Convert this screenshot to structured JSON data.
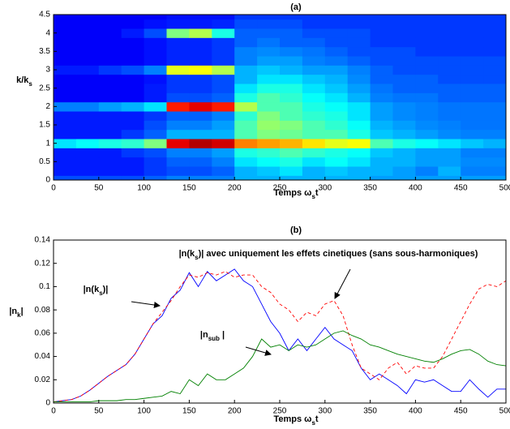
{
  "chart_data": [
    {
      "type": "heatmap",
      "title": "(a)",
      "xlabel_parts": [
        "Temps ω",
        "s",
        "t"
      ],
      "ylabel_parts": [
        "k/k",
        "s"
      ],
      "xlim": [
        0,
        500
      ],
      "xticks": [
        0,
        50,
        100,
        150,
        200,
        250,
        300,
        350,
        400,
        450,
        500
      ],
      "ylim": [
        0,
        4.5
      ],
      "yticks": [
        0,
        0.5,
        1,
        1.5,
        2,
        2.5,
        3,
        3.5,
        4,
        4.5
      ],
      "colormap": "jet",
      "zlim": [
        0,
        100
      ],
      "x": [
        12.5,
        37.5,
        62.5,
        87.5,
        112.5,
        137.5,
        162.5,
        187.5,
        212.5,
        237.5,
        262.5,
        287.5,
        312.5,
        337.5,
        362.5,
        387.5,
        412.5,
        437.5,
        462.5,
        487.5
      ],
      "y": [
        0,
        0.25,
        0.5,
        0.75,
        1,
        1.25,
        1.5,
        1.75,
        2,
        2.25,
        2.5,
        2.75,
        3,
        3.25,
        3.5,
        3.75,
        4,
        4.25,
        4.5
      ],
      "z": [
        [
          20,
          20,
          20,
          20,
          22,
          25,
          25,
          25,
          30,
          30,
          30,
          30,
          30,
          30,
          28,
          28,
          28,
          28,
          28,
          28
        ],
        [
          15,
          15,
          15,
          15,
          18,
          20,
          20,
          22,
          30,
          32,
          35,
          30,
          32,
          30,
          30,
          28,
          25,
          30,
          25,
          25
        ],
        [
          15,
          15,
          15,
          15,
          18,
          22,
          22,
          25,
          35,
          38,
          40,
          35,
          38,
          35,
          30,
          30,
          28,
          28,
          26,
          26
        ],
        [
          15,
          15,
          15,
          18,
          20,
          25,
          25,
          28,
          40,
          42,
          45,
          42,
          40,
          38,
          32,
          30,
          28,
          28,
          25,
          25
        ],
        [
          35,
          38,
          40,
          42,
          50,
          90,
          95,
          92,
          75,
          72,
          70,
          65,
          60,
          62,
          45,
          40,
          38,
          35,
          32,
          30
        ],
        [
          15,
          15,
          15,
          18,
          22,
          30,
          30,
          30,
          45,
          50,
          48,
          45,
          45,
          40,
          32,
          30,
          28,
          26,
          25,
          25
        ],
        [
          15,
          15,
          15,
          15,
          20,
          25,
          25,
          28,
          45,
          52,
          50,
          45,
          42,
          38,
          30,
          28,
          26,
          25,
          24,
          24
        ],
        [
          15,
          15,
          15,
          15,
          18,
          22,
          22,
          25,
          42,
          50,
          45,
          42,
          40,
          35,
          28,
          26,
          25,
          24,
          24,
          24
        ],
        [
          25,
          25,
          28,
          30,
          35,
          85,
          90,
          85,
          55,
          45,
          45,
          40,
          38,
          35,
          28,
          26,
          25,
          24,
          24,
          24
        ],
        [
          12,
          12,
          12,
          12,
          15,
          20,
          20,
          22,
          40,
          45,
          42,
          38,
          35,
          30,
          25,
          24,
          24,
          22,
          22,
          22
        ],
        [
          12,
          12,
          12,
          12,
          15,
          18,
          18,
          20,
          35,
          40,
          40,
          35,
          32,
          28,
          24,
          22,
          22,
          22,
          22,
          22
        ],
        [
          12,
          12,
          12,
          12,
          14,
          18,
          18,
          20,
          30,
          35,
          35,
          32,
          30,
          26,
          22,
          22,
          22,
          20,
          20,
          20
        ],
        [
          15,
          15,
          18,
          20,
          25,
          60,
          62,
          55,
          30,
          32,
          30,
          28,
          28,
          25,
          22,
          20,
          20,
          20,
          20,
          20
        ],
        [
          12,
          12,
          12,
          12,
          14,
          16,
          16,
          18,
          25,
          28,
          28,
          25,
          24,
          22,
          20,
          20,
          20,
          20,
          20,
          20
        ],
        [
          12,
          12,
          12,
          12,
          14,
          16,
          16,
          18,
          25,
          26,
          25,
          24,
          22,
          20,
          20,
          20,
          18,
          18,
          18,
          18
        ],
        [
          12,
          12,
          12,
          12,
          14,
          16,
          16,
          18,
          22,
          24,
          22,
          22,
          20,
          20,
          18,
          18,
          18,
          18,
          18,
          18
        ],
        [
          12,
          12,
          12,
          15,
          20,
          50,
          55,
          40,
          22,
          22,
          22,
          20,
          20,
          20,
          18,
          18,
          18,
          18,
          18,
          18
        ],
        [
          12,
          12,
          12,
          12,
          14,
          15,
          15,
          16,
          20,
          20,
          20,
          18,
          18,
          18,
          18,
          18,
          18,
          18,
          18,
          18
        ],
        [
          12,
          12,
          12,
          12,
          12,
          14,
          14,
          14,
          18,
          18,
          18,
          18,
          18,
          18,
          18,
          18,
          18,
          18,
          18,
          18
        ]
      ]
    },
    {
      "type": "line",
      "title": "(b)",
      "xlabel_parts": [
        "Temps ω",
        "s",
        "t"
      ],
      "ylabel_parts": [
        "|n",
        "k",
        "|"
      ],
      "xlim": [
        0,
        500
      ],
      "xticks": [
        0,
        50,
        100,
        150,
        200,
        250,
        300,
        350,
        400,
        450,
        500
      ],
      "ylim": [
        0,
        0.14
      ],
      "yticks": [
        0,
        0.02,
        0.04,
        0.06,
        0.08,
        0.1,
        0.12,
        0.14
      ],
      "x": [
        0,
        10,
        20,
        30,
        40,
        50,
        60,
        70,
        80,
        90,
        100,
        110,
        120,
        130,
        140,
        150,
        160,
        170,
        180,
        190,
        200,
        210,
        220,
        230,
        240,
        250,
        260,
        270,
        280,
        290,
        300,
        310,
        320,
        330,
        340,
        350,
        360,
        370,
        380,
        390,
        400,
        410,
        420,
        430,
        440,
        450,
        460,
        470,
        480,
        490,
        500
      ],
      "series": [
        {
          "color": "#0000ff",
          "linestyle": "solid",
          "values": [
            0.001,
            0.002,
            0.003,
            0.006,
            0.011,
            0.017,
            0.023,
            0.028,
            0.033,
            0.042,
            0.055,
            0.068,
            0.075,
            0.09,
            0.097,
            0.112,
            0.1,
            0.113,
            0.105,
            0.11,
            0.115,
            0.105,
            0.1,
            0.085,
            0.07,
            0.06,
            0.045,
            0.055,
            0.045,
            0.055,
            0.065,
            0.055,
            0.05,
            0.045,
            0.03,
            0.02,
            0.025,
            0.02,
            0.015,
            0.008,
            0.02,
            0.018,
            0.02,
            0.015,
            0.01,
            0.01,
            0.02,
            0.012,
            0.005,
            0.012,
            0.012
          ]
        },
        {
          "color": "#ff0000",
          "linestyle": "dashed",
          "values": [
            0.001,
            0.002,
            0.003,
            0.006,
            0.011,
            0.017,
            0.023,
            0.028,
            0.033,
            0.042,
            0.055,
            0.068,
            0.078,
            0.088,
            0.1,
            0.11,
            0.108,
            0.112,
            0.11,
            0.113,
            0.108,
            0.11,
            0.11,
            0.1,
            0.095,
            0.085,
            0.08,
            0.07,
            0.078,
            0.075,
            0.085,
            0.088,
            0.075,
            0.05,
            0.03,
            0.025,
            0.02,
            0.03,
            0.035,
            0.025,
            0.032,
            0.03,
            0.03,
            0.04,
            0.055,
            0.07,
            0.085,
            0.098,
            0.102,
            0.1,
            0.105
          ]
        },
        {
          "color": "#008000",
          "linestyle": "solid",
          "values": [
            0.001,
            0.001,
            0.001,
            0.001,
            0.001,
            0.002,
            0.002,
            0.002,
            0.003,
            0.003,
            0.004,
            0.005,
            0.006,
            0.01,
            0.008,
            0.02,
            0.015,
            0.025,
            0.02,
            0.02,
            0.025,
            0.03,
            0.04,
            0.055,
            0.048,
            0.05,
            0.045,
            0.05,
            0.048,
            0.05,
            0.055,
            0.06,
            0.062,
            0.058,
            0.055,
            0.05,
            0.048,
            0.045,
            0.042,
            0.04,
            0.038,
            0.036,
            0.035,
            0.038,
            0.042,
            0.045,
            0.046,
            0.042,
            0.036,
            0.033,
            0.032
          ]
        }
      ],
      "annotations": [
        {
          "parts": [
            "|n(k",
            "s",
            ")| avec uniquement les effets cinetiques (sans sous-harmoniques)"
          ]
        },
        {
          "parts": [
            "|n(k",
            "s",
            ")|"
          ]
        },
        {
          "parts": [
            "|n",
            "sub",
            " |"
          ]
        }
      ]
    }
  ]
}
